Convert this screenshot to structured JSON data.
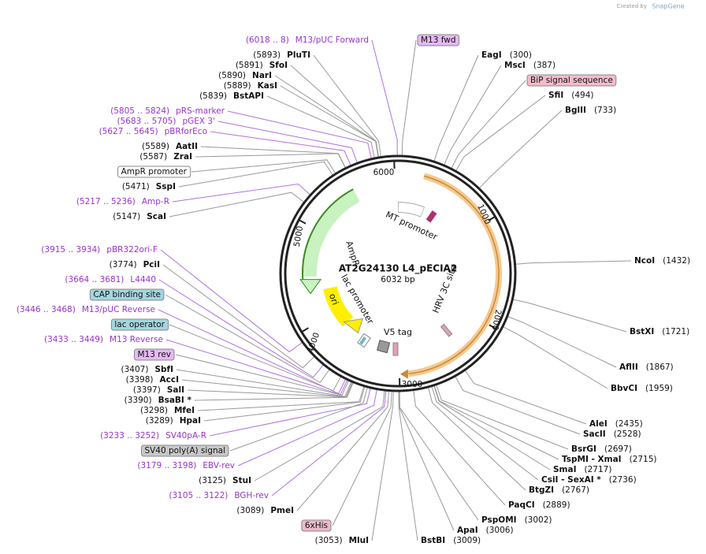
{
  "branding": {
    "prefix": "Created by",
    "name": "SnapGene"
  },
  "map": {
    "title": "AT2G24130 L4_pECIA2",
    "length": "6032 bp",
    "ruler": [
      "1000",
      "2000",
      "3000",
      "4000",
      "5000",
      "6000"
    ]
  },
  "features": [
    "MT promoter",
    "AmpR",
    "ori",
    "lac promoter",
    "V5 tag",
    "HRV 3C site"
  ],
  "left_labels": [
    {
      "location": "(6018 .. 8)",
      "name": "M13/pUC Forward",
      "color": "#9933cc"
    },
    {
      "location": "(5893)",
      "name": "PluTI"
    },
    {
      "location": "(5891)",
      "name": "SfoI"
    },
    {
      "location": "(5890)",
      "name": "NarI"
    },
    {
      "location": "(5889)",
      "name": "KasI"
    },
    {
      "location": "(5839)",
      "name": "BstAPI"
    },
    {
      "location": "(5805 .. 5824)",
      "name": "pRS-marker",
      "color": "#9933cc"
    },
    {
      "location": "(5683 .. 5705)",
      "name": "pGEX 3'",
      "color": "#9933cc"
    },
    {
      "location": "(5627 .. 5645)",
      "name": "pBRforEco",
      "color": "#9933cc"
    },
    {
      "location": "(5589)",
      "name": "AatII"
    },
    {
      "location": "(5587)",
      "name": "ZraI"
    },
    {
      "name": "AmpR promoter",
      "box": "#ffffff"
    },
    {
      "location": "(5471)",
      "name": "SspI"
    },
    {
      "location": "(5217 .. 5236)",
      "name": "Amp-R",
      "color": "#9933cc"
    },
    {
      "location": "(5147)",
      "name": "ScaI"
    },
    {
      "location": "(3915 .. 3934)",
      "name": "pBR322ori-F",
      "color": "#9933cc"
    },
    {
      "location": "(3774)",
      "name": "PciI"
    },
    {
      "location": "(3664 .. 3681)",
      "name": "L4440",
      "color": "#9933cc"
    },
    {
      "name": "CAP binding site",
      "box": "#a3d6df"
    },
    {
      "location": "(3446 .. 3468)",
      "name": "M13/pUC Reverse",
      "color": "#9933cc"
    },
    {
      "name": "lac operator",
      "box": "#a3d6df"
    },
    {
      "location": "(3433 .. 3449)",
      "name": "M13 Reverse",
      "color": "#9933cc"
    },
    {
      "name": "M13 rev",
      "box": "#e6b8f5"
    },
    {
      "location": "(3407)",
      "name": "SbfI"
    },
    {
      "location": "(3398)",
      "name": "AccI"
    },
    {
      "location": "(3397)",
      "name": "SalI"
    },
    {
      "location": "(3390)",
      "name": "BsaBI *"
    },
    {
      "location": "(3298)",
      "name": "MfeI"
    },
    {
      "location": "(3289)",
      "name": "HpaI"
    },
    {
      "location": "(3233 .. 3252)",
      "name": "SV40pA-R",
      "color": "#9933cc"
    },
    {
      "name": "SV40 poly(A) signal",
      "box": "#c8c8c8"
    },
    {
      "location": "(3179 .. 3198)",
      "name": "EBV-rev",
      "color": "#9933cc"
    },
    {
      "location": "(3125)",
      "name": "StuI"
    },
    {
      "location": "(3105 .. 3122)",
      "name": "BGH-rev",
      "color": "#9933cc"
    },
    {
      "location": "(3089)",
      "name": "PmeI"
    },
    {
      "name": "6xHis",
      "box": "#ebb8cc"
    },
    {
      "location": "(3053)",
      "name": "MluI"
    }
  ],
  "right_labels": [
    {
      "name": "M13 fwd",
      "box": "#e6b8f5"
    },
    {
      "name": "EagI",
      "location": "(300)"
    },
    {
      "name": "MscI",
      "location": "(387)"
    },
    {
      "name": "BiP signal sequence",
      "box": "#f2bccb"
    },
    {
      "name": "SfiI",
      "location": "(494)"
    },
    {
      "name": "BglII",
      "location": "(733)"
    },
    {
      "name": "NcoI",
      "location": "(1432)"
    },
    {
      "name": "BstXI",
      "location": "(1721)"
    },
    {
      "name": "AflII",
      "location": "(1867)"
    },
    {
      "name": "BbvCI",
      "location": "(1959)"
    },
    {
      "name": "AleI",
      "location": "(2435)"
    },
    {
      "name": "SacII",
      "location": "(2528)"
    },
    {
      "name": "BsrGI",
      "location": "(2697)"
    },
    {
      "name": "TspMI - XmaI",
      "location": "(2715)"
    },
    {
      "name": "SmaI",
      "location": "(2717)"
    },
    {
      "name": "CsiI - SexAI *",
      "location": "(2736)"
    },
    {
      "name": "BtgZI",
      "location": "(2767)"
    },
    {
      "name": "PaqCI",
      "location": "(2889)"
    },
    {
      "name": "PspOMI",
      "location": "(3002)"
    },
    {
      "name": "ApaI",
      "location": "(3006)"
    },
    {
      "name": "BstBI",
      "location": "(3009)"
    }
  ]
}
